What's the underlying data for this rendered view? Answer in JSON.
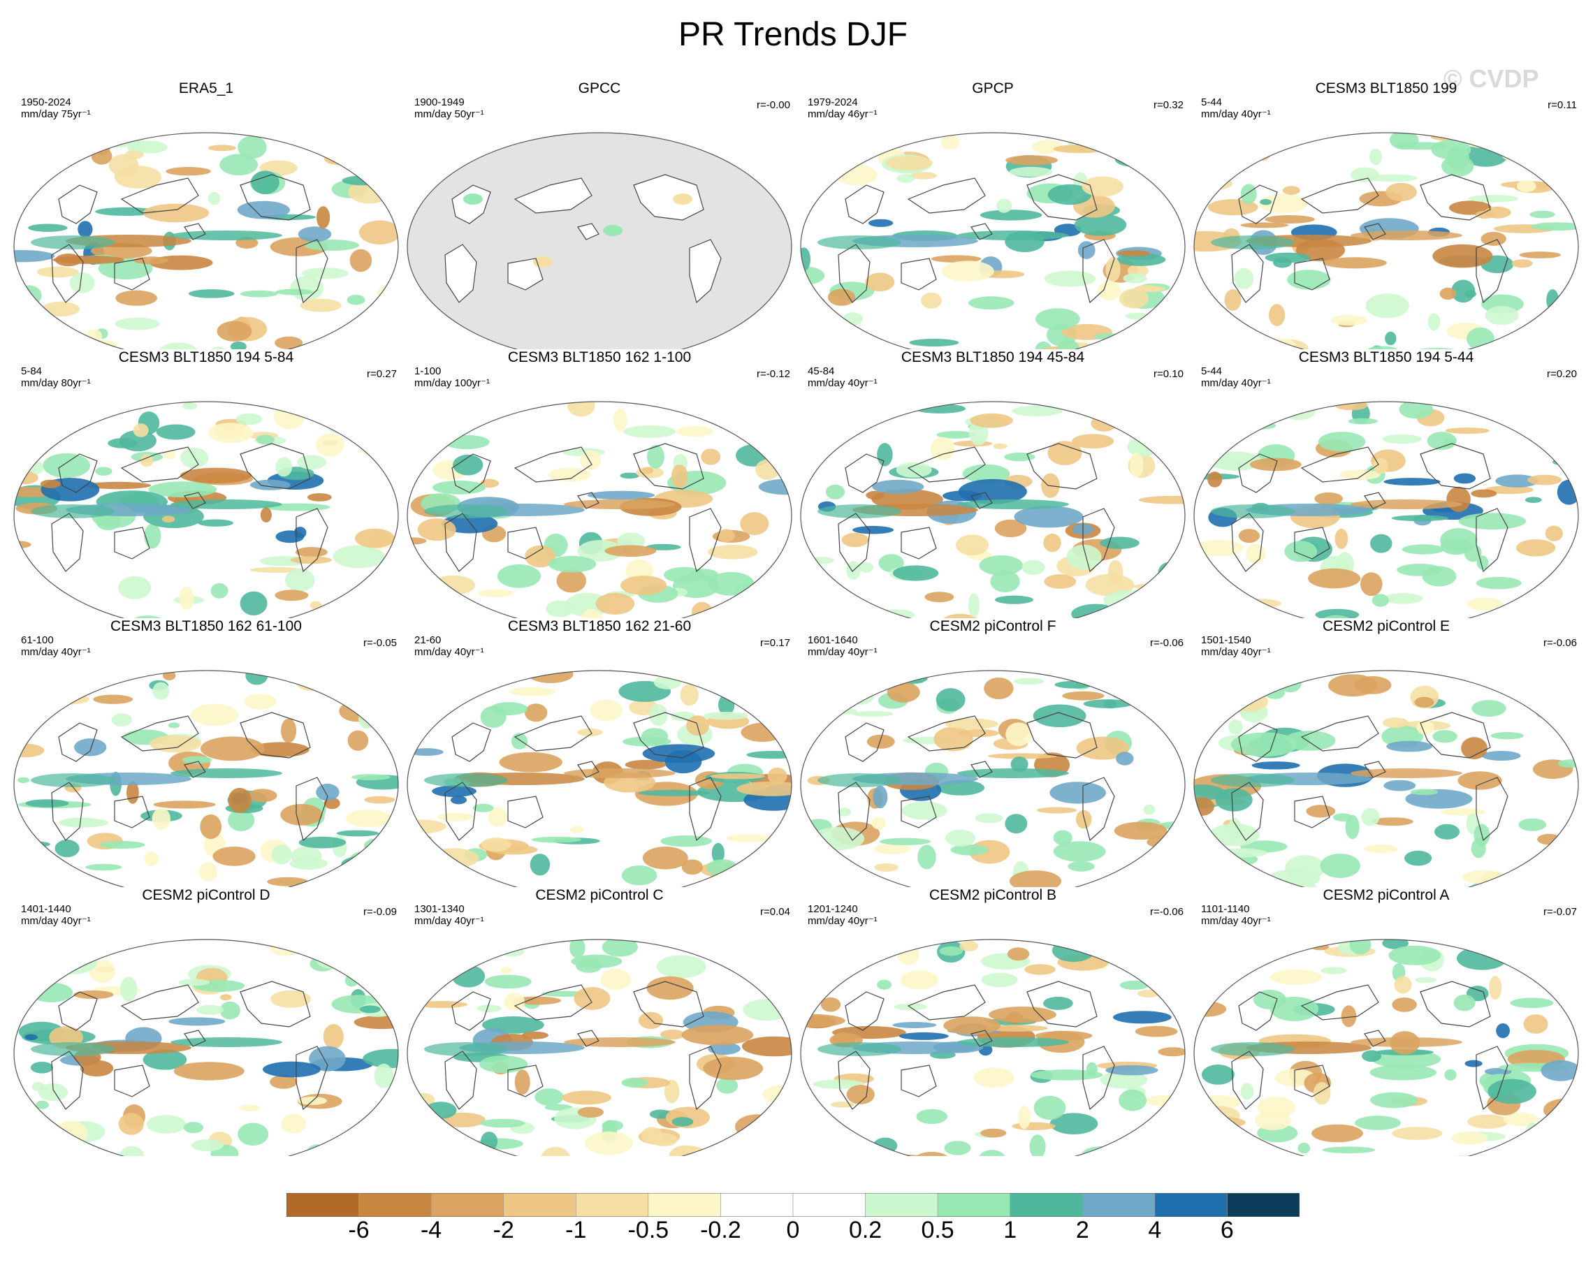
{
  "title": "PR Trends DJF",
  "watermark": "© CVDP",
  "panels": [
    {
      "title": "ERA5_1",
      "period": "1950-2024",
      "units": "mm/day 75yr⁻¹",
      "r": "",
      "masked": false,
      "style": 0
    },
    {
      "title": "GPCC",
      "period": "1900-1949",
      "units": "mm/day 50yr⁻¹",
      "r": "r=-0.00",
      "masked": true,
      "style": 1
    },
    {
      "title": "GPCP",
      "period": "1979-2024",
      "units": "mm/day 46yr⁻¹",
      "r": "r=0.32",
      "masked": false,
      "style": 2
    },
    {
      "title": "CESM3 BLT1850 199",
      "period": "5-44",
      "units": "mm/day 40yr⁻¹",
      "r": "r=0.11",
      "masked": false,
      "style": 3
    },
    {
      "title": "CESM3 BLT1850 194 5-84",
      "period": "5-84",
      "units": "mm/day 80yr⁻¹",
      "r": "r=0.27",
      "masked": false,
      "style": 4
    },
    {
      "title": "CESM3 BLT1850 162 1-100",
      "period": "1-100",
      "units": "mm/day 100yr⁻¹",
      "r": "r=-0.12",
      "masked": false,
      "style": 5
    },
    {
      "title": "CESM3 BLT1850 194 45-84",
      "period": "45-84",
      "units": "mm/day 40yr⁻¹",
      "r": "r=0.10",
      "masked": false,
      "style": 6
    },
    {
      "title": "CESM3 BLT1850 194 5-44",
      "period": "5-44",
      "units": "mm/day 40yr⁻¹",
      "r": "r=0.20",
      "masked": false,
      "style": 7
    },
    {
      "title": "CESM3 BLT1850 162 61-100",
      "period": "61-100",
      "units": "mm/day 40yr⁻¹",
      "r": "r=-0.05",
      "masked": false,
      "style": 8
    },
    {
      "title": "CESM3 BLT1850 162 21-60",
      "period": "21-60",
      "units": "mm/day 40yr⁻¹",
      "r": "r=0.17",
      "masked": false,
      "style": 9
    },
    {
      "title": "CESM2 piControl F",
      "period": "1601-1640",
      "units": "mm/day 40yr⁻¹",
      "r": "r=-0.06",
      "masked": false,
      "style": 10
    },
    {
      "title": "CESM2 piControl E",
      "period": "1501-1540",
      "units": "mm/day 40yr⁻¹",
      "r": "r=-0.06",
      "masked": false,
      "style": 11
    },
    {
      "title": "CESM2 piControl D",
      "period": "1401-1440",
      "units": "mm/day 40yr⁻¹",
      "r": "r=-0.09",
      "masked": false,
      "style": 12
    },
    {
      "title": "CESM2 piControl C",
      "period": "1301-1340",
      "units": "mm/day 40yr⁻¹",
      "r": "r=0.04",
      "masked": false,
      "style": 13
    },
    {
      "title": "CESM2 piControl B",
      "period": "1201-1240",
      "units": "mm/day 40yr⁻¹",
      "r": "r=-0.06",
      "masked": false,
      "style": 14
    },
    {
      "title": "CESM2 piControl A",
      "period": "1101-1140",
      "units": "mm/day 40yr⁻¹",
      "r": "r=-0.07",
      "masked": false,
      "style": 15
    }
  ],
  "colorbar": {
    "colors": [
      "#b26a2b",
      "#c98641",
      "#dba360",
      "#eec784",
      "#f5dfa3",
      "#fdf6c8",
      "#ffffff",
      "#ffffff",
      "#cdf7cf",
      "#98e8b4",
      "#4fb89c",
      "#6fa8c8",
      "#1f6fae",
      "#0b3d5a"
    ],
    "labels": [
      "-6",
      "-4",
      "-2",
      "-1",
      "-0.5",
      "-0.2",
      "0",
      "0.2",
      "0.5",
      "1",
      "2",
      "4",
      "6"
    ]
  }
}
